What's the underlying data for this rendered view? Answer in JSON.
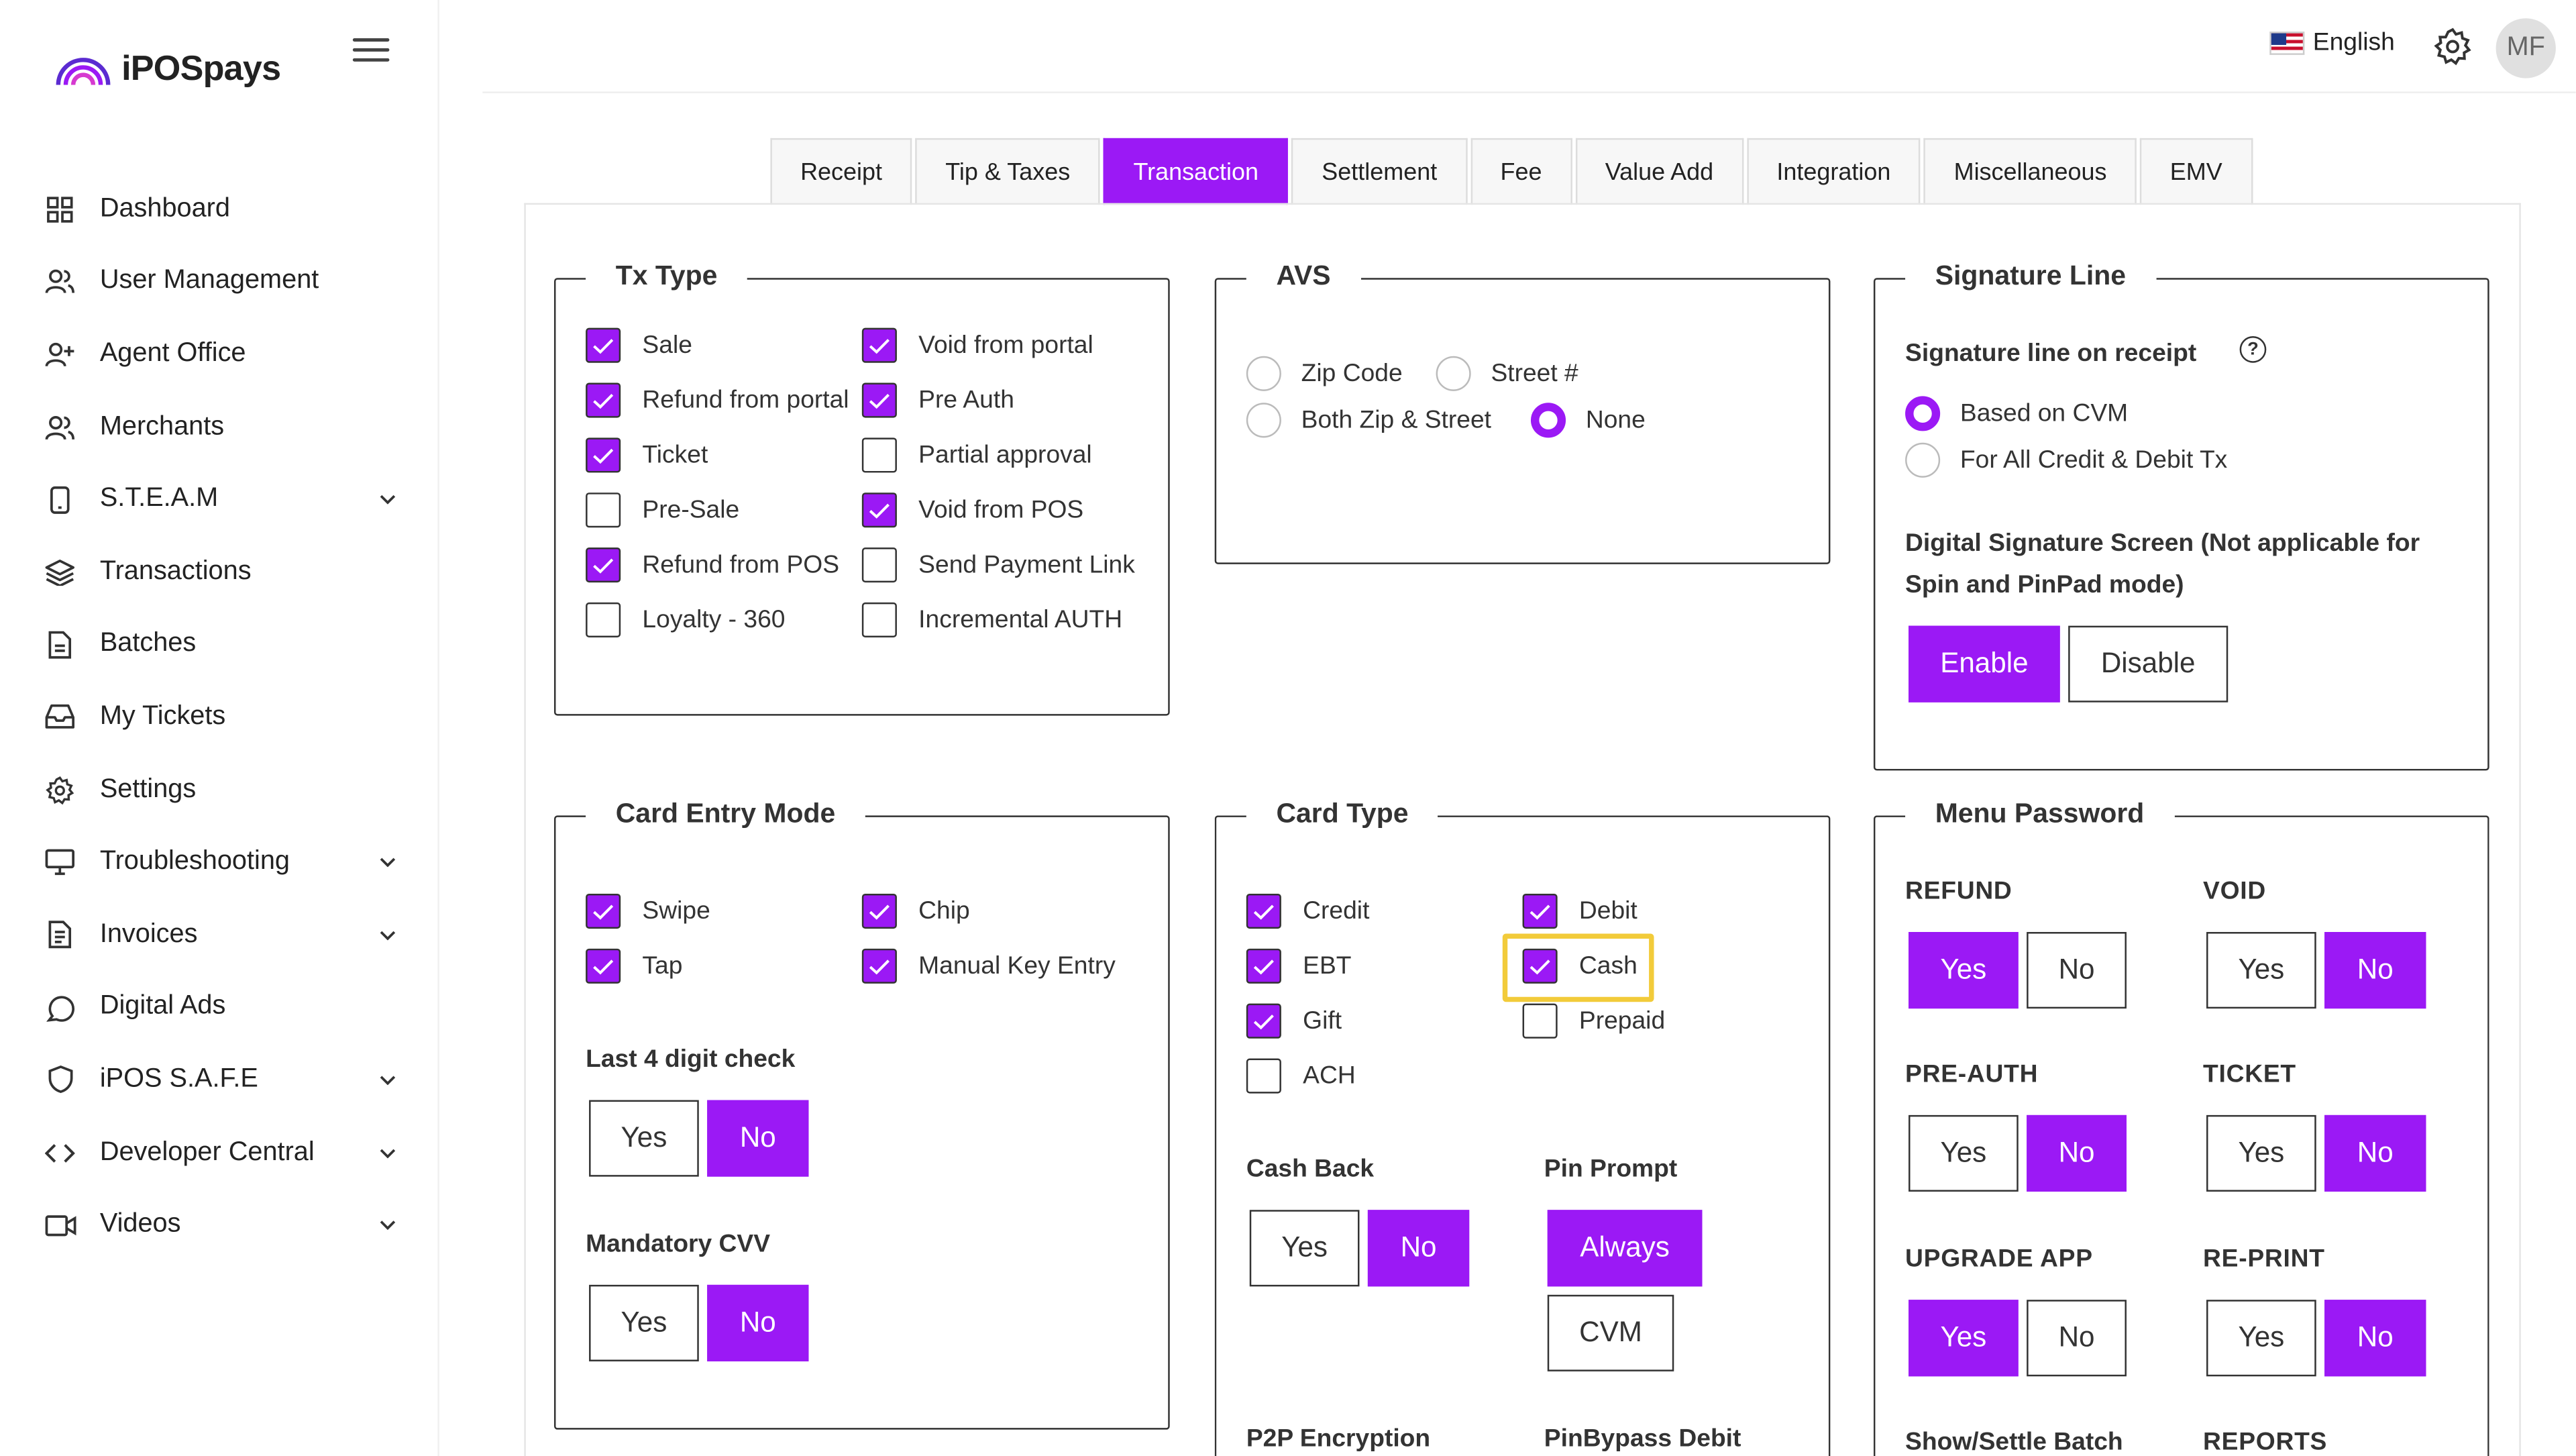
{
  "app": {
    "brand": "iPOSpays",
    "user_initials": "MF",
    "language": "English"
  },
  "sidebar": {
    "items": [
      {
        "label": "Dashboard"
      },
      {
        "label": "User Management"
      },
      {
        "label": "Agent Office"
      },
      {
        "label": "Merchants"
      },
      {
        "label": "S.T.E.A.M"
      },
      {
        "label": "Transactions"
      },
      {
        "label": "Batches"
      },
      {
        "label": "My Tickets"
      },
      {
        "label": "Settings"
      },
      {
        "label": "Troubleshooting"
      },
      {
        "label": "Invoices"
      },
      {
        "label": "Digital Ads"
      },
      {
        "label": "iPOS S.A.F.E"
      },
      {
        "label": "Developer Central"
      },
      {
        "label": "Videos"
      }
    ]
  },
  "tabs": [
    "Receipt",
    "Tip & Taxes",
    "Transaction",
    "Settlement",
    "Fee",
    "Value Add",
    "Integration",
    "Miscellaneous",
    "EMV"
  ],
  "active_tab": "Transaction",
  "tx_type": {
    "title": "Tx Type",
    "options": [
      {
        "label": "Sale",
        "checked": true
      },
      {
        "label": "Void from portal",
        "checked": true
      },
      {
        "label": "Refund from portal",
        "checked": true
      },
      {
        "label": "Pre Auth",
        "checked": true
      },
      {
        "label": "Ticket",
        "checked": true
      },
      {
        "label": "Partial approval",
        "checked": false
      },
      {
        "label": "Pre-Sale",
        "checked": false
      },
      {
        "label": "Void from POS",
        "checked": true
      },
      {
        "label": "Refund from POS",
        "checked": true
      },
      {
        "label": "Send Payment Link",
        "checked": false
      },
      {
        "label": "Loyalty - 360",
        "checked": false
      },
      {
        "label": "Incremental AUTH",
        "checked": false
      }
    ]
  },
  "avs": {
    "title": "AVS",
    "options": [
      {
        "label": "Zip Code",
        "selected": false
      },
      {
        "label": "Street #",
        "selected": false
      },
      {
        "label": "Both Zip & Street",
        "selected": false
      },
      {
        "label": "None",
        "selected": true
      }
    ]
  },
  "signature_line": {
    "title": "Signature Line",
    "subtitle": "Signature line on receipt",
    "help": "?",
    "options": [
      {
        "label": "Based on CVM",
        "selected": true
      },
      {
        "label": "For All Credit & Debit Tx",
        "selected": false
      }
    ],
    "digital_title_1": "Digital Signature Screen (Not applicable for",
    "digital_title_2": "Spin and PinPad mode)",
    "enable": "Enable",
    "disable": "Disable",
    "selected": "Enable"
  },
  "card_entry": {
    "title": "Card Entry Mode",
    "options": [
      {
        "label": "Swipe",
        "checked": true
      },
      {
        "label": "Chip",
        "checked": true
      },
      {
        "label": "Tap",
        "checked": true
      },
      {
        "label": "Manual Key Entry",
        "checked": true
      }
    ],
    "last4_title": "Last 4 digit check",
    "last4_selected": "No",
    "cvv_title": "Mandatory CVV",
    "cvv_selected": "No"
  },
  "card_type": {
    "title": "Card Type",
    "options": [
      {
        "label": "Credit",
        "checked": true
      },
      {
        "label": "Debit",
        "checked": true
      },
      {
        "label": "EBT",
        "checked": true
      },
      {
        "label": "Cash",
        "checked": true
      },
      {
        "label": "Gift",
        "checked": true
      },
      {
        "label": "Prepaid",
        "checked": false
      },
      {
        "label": "ACH",
        "checked": false
      }
    ],
    "cash_back_title": "Cash Back",
    "cash_back_selected": "No",
    "pin_prompt_title": "Pin Prompt",
    "pin_always": "Always",
    "pin_cvm": "CVM",
    "pin_selected": "Always",
    "p2p_title": "P2P Encryption",
    "pinbypass_title": "PinBypass Debit"
  },
  "menu_password": {
    "title": "Menu Password",
    "groups": [
      {
        "label": "REFUND",
        "selected": "Yes"
      },
      {
        "label": "VOID",
        "selected": "No"
      },
      {
        "label": "PRE-AUTH",
        "selected": "No"
      },
      {
        "label": "TICKET",
        "selected": "No"
      },
      {
        "label": "UPGRADE APP",
        "selected": "Yes"
      },
      {
        "label": "RE-PRINT",
        "selected": "No"
      }
    ],
    "show_settle": "Show/Settle Batch",
    "reports": "REPORTS"
  },
  "labels": {
    "yes": "Yes",
    "no": "No"
  },
  "colors": {
    "accent": "#9b19f5",
    "highlight": "#f2cb3a"
  }
}
